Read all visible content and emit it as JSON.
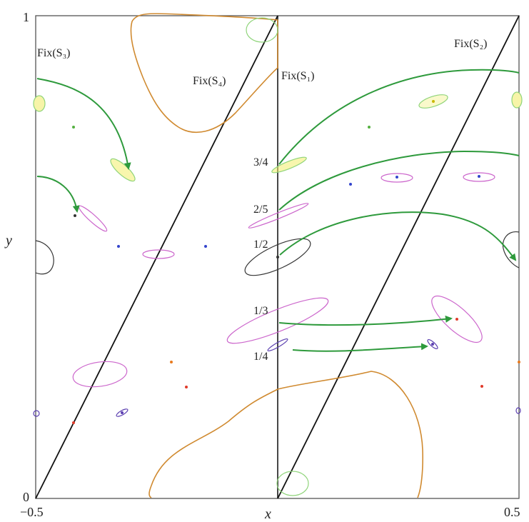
{
  "axes": {
    "x_label": "x",
    "y_label": "y",
    "x_min_label": "−0.5",
    "x_max_label": "0.5",
    "y_min_label": "0",
    "y_max_label": "1"
  },
  "symmetry_lines": {
    "s1": "Fix(S₁)",
    "s2": "Fix(S₂)",
    "s3": "Fix(S₃)",
    "s4": "Fix(S₄)"
  },
  "rotation_numbers": [
    "3/4",
    "2/5",
    "1/2",
    "1/3",
    "1/4"
  ],
  "colors": {
    "frame": "#555555",
    "fix_lines": "#111111",
    "arrows": "#2e9a3c",
    "orange_curve": "#d08a30",
    "light_green": "#8fd47a",
    "magenta": "#cc66cc",
    "purple": "#5b3fb0",
    "black_orbit": "#333333",
    "yellow_fill": "#f2ee6a",
    "blue_dot": "#3344cc",
    "red_dot": "#e03a2a",
    "orange_dot": "#e87a1e",
    "green_dot": "#55b040"
  }
}
